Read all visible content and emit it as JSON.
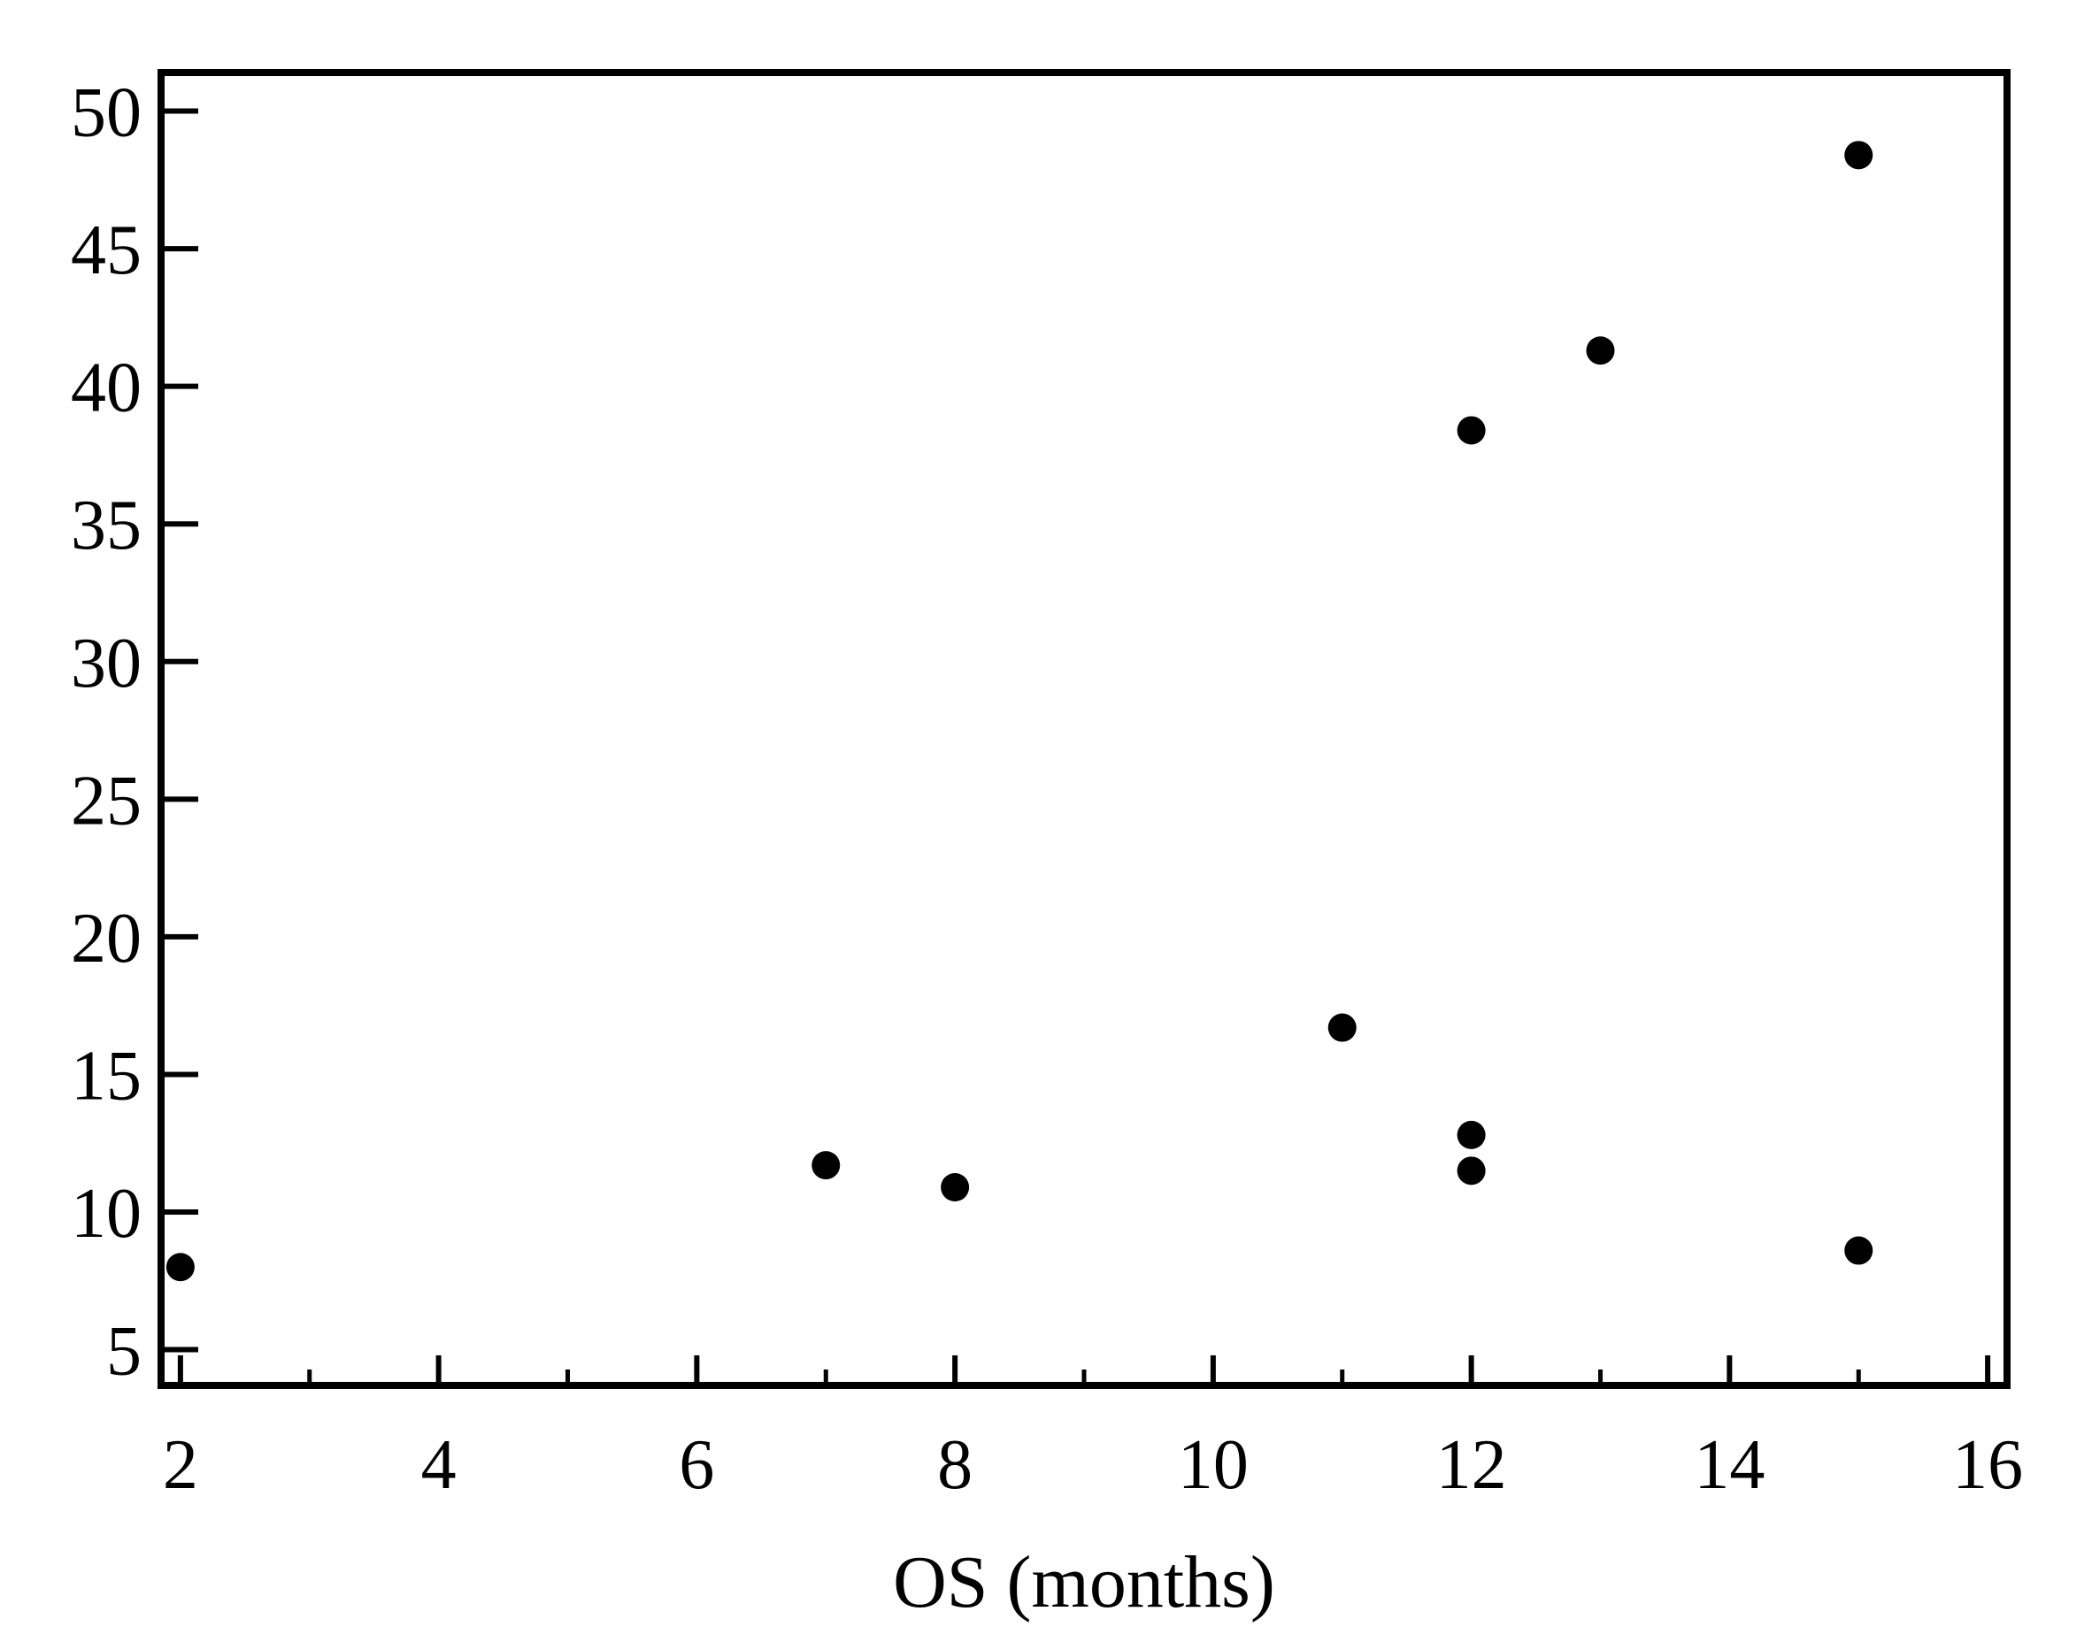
{
  "chart_data": {
    "type": "scatter",
    "title": "",
    "xlabel": "OS (months)",
    "ylabel": "",
    "xlim": [
      1.85,
      16.15
    ],
    "ylim": [
      3.7,
      51.4
    ],
    "xticks_major": [
      2,
      4,
      6,
      8,
      10,
      12,
      14,
      16
    ],
    "xticks_minor": [
      3,
      5,
      7,
      9,
      11,
      13,
      15
    ],
    "yticks": [
      5,
      10,
      15,
      20,
      25,
      30,
      35,
      40,
      45,
      50
    ],
    "grid": false,
    "legend": "none",
    "marker_color": "#000000",
    "points": [
      {
        "x": 2,
        "y": 8.0
      },
      {
        "x": 7,
        "y": 11.7
      },
      {
        "x": 8,
        "y": 10.9
      },
      {
        "x": 11,
        "y": 16.7
      },
      {
        "x": 12,
        "y": 38.4
      },
      {
        "x": 12,
        "y": 12.8
      },
      {
        "x": 12,
        "y": 11.5
      },
      {
        "x": 13,
        "y": 41.3
      },
      {
        "x": 15,
        "y": 48.4
      },
      {
        "x": 15,
        "y": 8.6
      }
    ]
  }
}
